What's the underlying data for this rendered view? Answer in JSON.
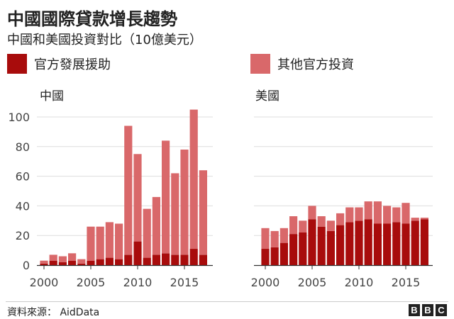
{
  "title": "中國國際貸款增長趨勢",
  "subtitle": "中國和美國投資對比（10億美元）",
  "legend": [
    {
      "label": "官方發展援助",
      "color": "#a80c0c"
    },
    {
      "label": "其他官方投資",
      "color": "#d9686a"
    }
  ],
  "source": "資料來源： AidData",
  "logo": [
    "B",
    "B",
    "C"
  ],
  "chart_data": [
    {
      "type": "bar",
      "stacked": true,
      "title": "中國",
      "x": [
        2000,
        2001,
        2002,
        2003,
        2004,
        2005,
        2006,
        2007,
        2008,
        2009,
        2010,
        2011,
        2012,
        2013,
        2014,
        2015,
        2016,
        2017
      ],
      "series": [
        {
          "name": "官方發展援助",
          "values": [
            1,
            3,
            2,
            3,
            1,
            3,
            4,
            5,
            4,
            7,
            16,
            5,
            7,
            8,
            7,
            7,
            11,
            7
          ]
        },
        {
          "name": "其他官方投資",
          "values": [
            2,
            4,
            4,
            5,
            3,
            23,
            22,
            24,
            24,
            87,
            59,
            33,
            39,
            76,
            55,
            71,
            94,
            57
          ]
        }
      ],
      "ylim": [
        0,
        110
      ],
      "yticks": [
        0,
        20,
        40,
        60,
        80,
        100
      ],
      "xticks": [
        2000,
        2005,
        2010,
        2015
      ]
    },
    {
      "type": "bar",
      "stacked": true,
      "title": "美國",
      "x": [
        2000,
        2001,
        2002,
        2003,
        2004,
        2005,
        2006,
        2007,
        2008,
        2009,
        2010,
        2011,
        2012,
        2013,
        2014,
        2015,
        2016,
        2017
      ],
      "series": [
        {
          "name": "官方發展援助",
          "values": [
            11,
            12,
            15,
            21,
            22,
            31,
            26,
            23,
            27,
            29,
            30,
            31,
            28,
            28,
            29,
            28,
            30,
            31
          ]
        },
        {
          "name": "其他官方投資",
          "values": [
            14,
            11,
            10,
            12,
            8,
            9,
            7,
            7,
            8,
            10,
            9,
            12,
            15,
            12,
            10,
            14,
            2,
            1
          ]
        }
      ],
      "ylim": [
        0,
        110
      ],
      "xticks": [
        2000,
        2005,
        2010,
        2015
      ]
    }
  ]
}
